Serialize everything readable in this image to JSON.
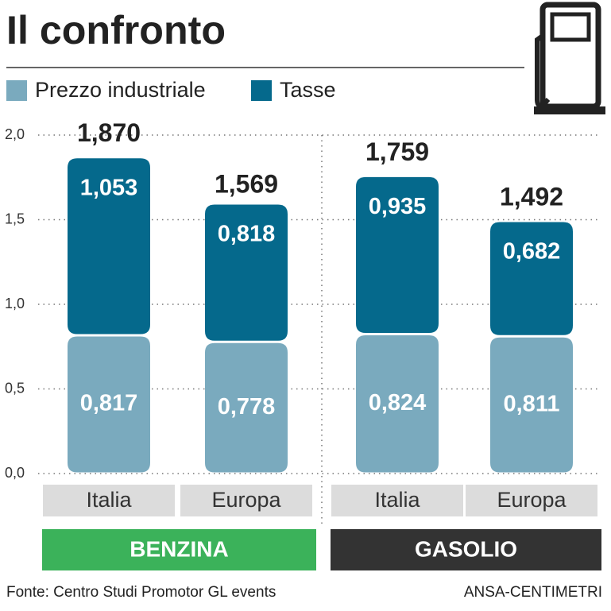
{
  "chart_data": {
    "type": "stacked-bar",
    "title": "Il confronto",
    "categories": [
      "Italia",
      "Europa",
      "Italia",
      "Europa"
    ],
    "groups": [
      {
        "label": "BENZINA",
        "color": "#3bb25a",
        "span": [
          0,
          1
        ]
      },
      {
        "label": "GASOLIO",
        "color": "#333333",
        "span": [
          2,
          3
        ]
      }
    ],
    "series": [
      {
        "name": "Prezzo industriale",
        "color": "#7aaabe",
        "values": [
          0.817,
          0.778,
          0.824,
          0.811
        ],
        "value_labels": [
          "0,817",
          "0,778",
          "0,824",
          "0,811"
        ]
      },
      {
        "name": "Tasse",
        "color": "#05698c",
        "values": [
          1.053,
          0.818,
          0.935,
          0.682
        ],
        "value_labels": [
          "1,053",
          "0,818",
          "0,935",
          "0,682"
        ]
      }
    ],
    "totals": {
      "values": [
        1.87,
        1.569,
        1.759,
        1.492
      ],
      "value_labels": [
        "1,870",
        "1,569",
        "1,759",
        "1,492"
      ]
    },
    "ylim": [
      0,
      2.0
    ],
    "yticks": [
      {
        "value": 0,
        "label": "0,0"
      },
      {
        "value": 0.5,
        "label": "0,5"
      },
      {
        "value": 1.0,
        "label": "1,0"
      },
      {
        "value": 1.5,
        "label": "1,5"
      },
      {
        "value": 2.0,
        "label": "2,0"
      }
    ],
    "grid": true,
    "source": "Fonte: Centro Studi Promotor GL events",
    "credit": "ANSA-CENTIMETRI"
  }
}
